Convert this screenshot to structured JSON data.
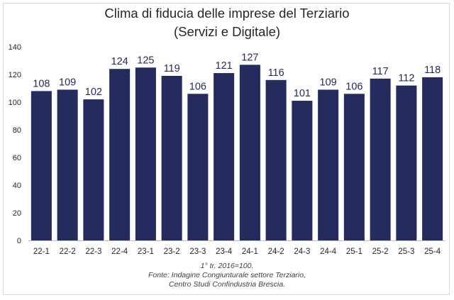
{
  "chart_data": {
    "type": "bar",
    "title": "Clima di fiducia delle imprese del Terziario",
    "subtitle": "(Servizi e Digitale)",
    "categories": [
      "22-1",
      "22-2",
      "22-3",
      "22-4",
      "23-1",
      "23-2",
      "23-3",
      "23-4",
      "24-1",
      "24-2",
      "24-3",
      "24-4",
      "25-1",
      "25-2",
      "25-3",
      "25-4"
    ],
    "values": [
      108,
      109,
      102,
      124,
      125,
      119,
      106,
      121,
      127,
      116,
      101,
      109,
      106,
      117,
      112,
      118
    ],
    "ylim": [
      0,
      140
    ],
    "yticks": [
      0,
      20,
      40,
      60,
      80,
      100,
      120,
      140
    ],
    "grid": false,
    "data_labels": true,
    "bar_color": "#252b5c",
    "label_color": "#252b5c"
  },
  "notes": {
    "base": "1° tr. 2016=100.",
    "source": "Fonte: Indagine Congiunturale settore Terziario,",
    "source_org": "Centro Studi Confindustria Brescia."
  }
}
